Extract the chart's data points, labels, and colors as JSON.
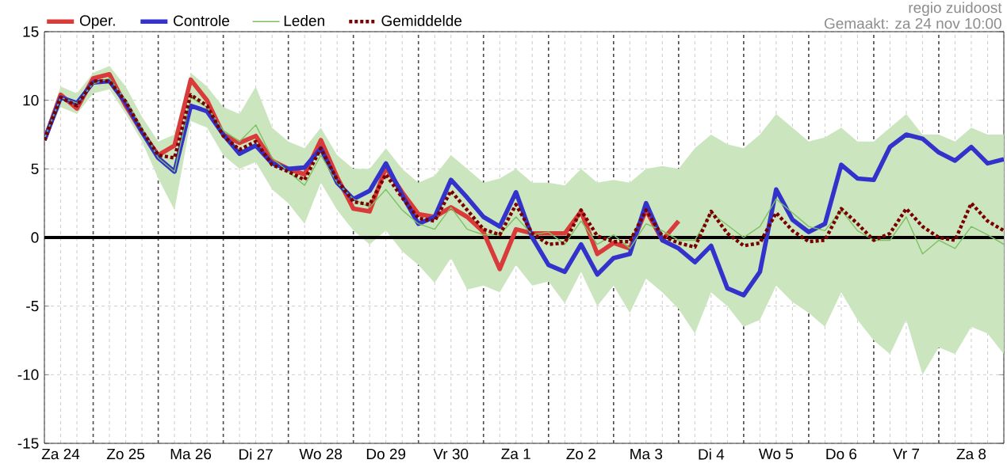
{
  "chart_data": {
    "type": "line",
    "annotations": [
      "regio zuidoost",
      "Gemaakt: za 24 nov 10:00"
    ],
    "categories": [
      null,
      "Za 24",
      null,
      null,
      null,
      "Zo 25",
      null,
      null,
      null,
      "Ma 26",
      null,
      null,
      null,
      "Di 27",
      null,
      null,
      null,
      "Wo 28",
      null,
      null,
      null,
      "Do 29",
      null,
      null,
      null,
      "Vr 30",
      null,
      null,
      null,
      "Za 1",
      null,
      null,
      null,
      "Zo 2",
      null,
      null,
      null,
      "Ma 3",
      null,
      null,
      null,
      "Di 4",
      null,
      null,
      null,
      "Wo 5",
      null,
      null,
      null,
      "Do 6",
      null,
      null,
      null,
      "Vr 7",
      null,
      null,
      null,
      "Za 8",
      null,
      null
    ],
    "ylim": [
      -15,
      15
    ],
    "yticks": [
      -15,
      -10,
      -5,
      0,
      5,
      10,
      15
    ],
    "grid": true,
    "legend": "top",
    "ref_lines": [
      {
        "axis": "y",
        "value": 0,
        "color": "#000000"
      }
    ],
    "series": [
      {
        "name": "Oper.",
        "color": "#d93a3a",
        "line_style": "solid",
        "values": [
          7.1,
          10.4,
          9.4,
          11.6,
          11.9,
          9.6,
          7.7,
          6.0,
          6.7,
          11.5,
          10.0,
          7.5,
          6.9,
          7.4,
          5.6,
          5.0,
          4.6,
          7.1,
          4.4,
          2.1,
          1.9,
          5.1,
          3.3,
          1.7,
          1.5,
          2.2,
          1.5,
          0.4,
          -2.3,
          0.6,
          0.3,
          0.3,
          0.3,
          1.9,
          -1.2,
          -0.4,
          -0.8,
          2.0,
          -0.2,
          1.2,
          null,
          null,
          null,
          null,
          null,
          null,
          null,
          null,
          null,
          null,
          null,
          null,
          null,
          null,
          null,
          null,
          null,
          null,
          null,
          null
        ]
      },
      {
        "name": "Controle",
        "color": "#3333cc",
        "line_style": "solid",
        "values": [
          7.1,
          10.2,
          9.8,
          11.3,
          11.4,
          9.8,
          7.7,
          5.8,
          4.8,
          9.6,
          9.2,
          7.5,
          6.1,
          6.7,
          5.4,
          5.0,
          5.1,
          6.5,
          4.0,
          2.8,
          3.4,
          5.4,
          3.1,
          1.0,
          1.5,
          4.2,
          2.9,
          1.5,
          0.8,
          3.3,
          0.0,
          -2.0,
          -2.5,
          -0.5,
          -2.7,
          -1.5,
          -1.2,
          2.5,
          -0.2,
          -0.8,
          -1.8,
          -0.6,
          -3.7,
          -4.2,
          -2.5,
          3.5,
          1.3,
          0.4,
          1.0,
          5.3,
          4.3,
          4.2,
          6.6,
          7.5,
          7.2,
          6.2,
          5.6,
          6.6,
          5.4,
          5.7
        ]
      },
      {
        "name": "Leden",
        "color": "#7cc060",
        "line_style": "solid",
        "values": [
          7.2,
          10.2,
          9.8,
          11.2,
          11.6,
          10.0,
          8.0,
          5.8,
          4.8,
          10.2,
          9.5,
          7.8,
          7.0,
          8.2,
          5.8,
          4.8,
          3.8,
          6.0,
          4.0,
          2.8,
          2.2,
          3.5,
          2.0,
          1.0,
          0.6,
          2.2,
          0.6,
          0.2,
          0.2,
          1.5,
          0.2,
          0.4,
          -0.5,
          1.2,
          -0.5,
          0.2,
          -0.8,
          1.0,
          0.5,
          -0.2,
          -0.2,
          1.8,
          0.9,
          0.0,
          0.8,
          2.8,
          1.8,
          0.8,
          0.5,
          2.0,
          0.5,
          -0.2,
          -0.2,
          1.5,
          -1.2,
          -0.2,
          -0.8,
          0.8,
          0.2,
          -0.5
        ],
        "upper": [
          7.5,
          11,
          10.5,
          12,
          12.5,
          11,
          8.8,
          7,
          7.5,
          12,
          11,
          9.5,
          9,
          11,
          8,
          7,
          6.5,
          8,
          6,
          5,
          5,
          6.5,
          5,
          4,
          4.5,
          6,
          5,
          4,
          4.3,
          5,
          4,
          4,
          3.8,
          5,
          4,
          4.2,
          4,
          5,
          5.2,
          5,
          6.5,
          7.5,
          6.8,
          6.5,
          7.5,
          9,
          8,
          7,
          7.3,
          8,
          7,
          7,
          8,
          9,
          7.5,
          7.5,
          7,
          8,
          7.5,
          7.5
        ],
        "lower": [
          7,
          9.5,
          9,
          10.5,
          10.8,
          9,
          7,
          4.3,
          2,
          8.5,
          8,
          6,
          5,
          5.5,
          3.5,
          2.5,
          1,
          4,
          2,
          0.5,
          -0.5,
          0.5,
          -1,
          -2,
          -3.3,
          -1.5,
          -3.8,
          -3.5,
          -4,
          -2,
          -3.5,
          -3.2,
          -4.8,
          -2.5,
          -5,
          -3.5,
          -5.5,
          -3,
          -4,
          -5.2,
          -7,
          -4,
          -5,
          -6.5,
          -6,
          -3.5,
          -4.7,
          -5.5,
          -6.5,
          -4,
          -6,
          -7.5,
          -8.5,
          -6,
          -10,
          -8,
          -8.5,
          -6.5,
          -7,
          -8.5
        ]
      },
      {
        "name": "Gemiddelde",
        "color": "#7a0000",
        "line_style": "dotted",
        "values": [
          7.1,
          10.2,
          9.6,
          11.4,
          11.4,
          9.9,
          7.8,
          6.0,
          5.8,
          10.4,
          9.6,
          7.4,
          6.4,
          7.0,
          5.3,
          4.8,
          4.2,
          6.5,
          4.2,
          2.6,
          2.4,
          4.6,
          2.9,
          1.4,
          1.2,
          3.4,
          2.0,
          0.6,
          0.2,
          2.4,
          0.3,
          -0.5,
          -0.4,
          2.0,
          0.1,
          -0.3,
          -0.3,
          2.0,
          0.1,
          -0.4,
          -0.7,
          1.9,
          0.3,
          -0.6,
          -0.4,
          1.8,
          0.5,
          -0.3,
          -0.2,
          2.1,
          1.0,
          -0.2,
          0.3,
          2.1,
          0.8,
          0.0,
          -0.2,
          2.5,
          1.2,
          0.5
        ]
      }
    ]
  }
}
